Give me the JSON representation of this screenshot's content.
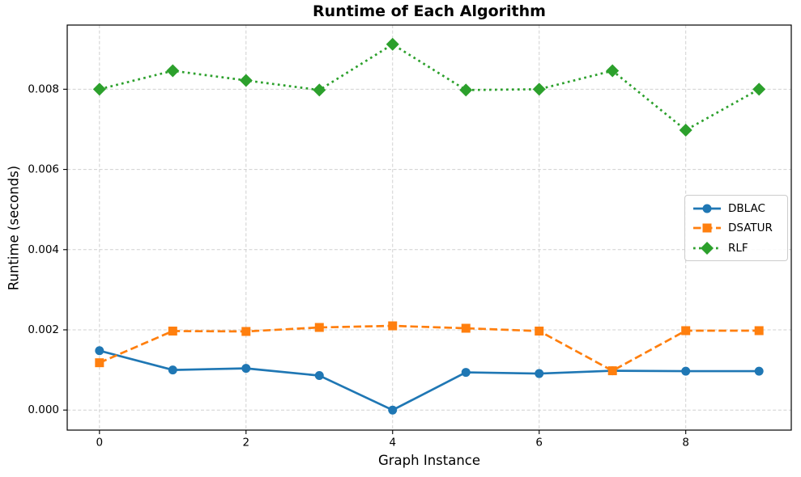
{
  "chart_data": {
    "type": "line",
    "title": "Runtime of Each Algorithm",
    "xlabel": "Graph Instance",
    "ylabel": "Runtime (seconds)",
    "x": [
      0,
      1,
      2,
      3,
      4,
      5,
      6,
      7,
      8,
      9
    ],
    "series": [
      {
        "name": "DBLAC",
        "color": "#1f77b4",
        "marker": "circle",
        "linestyle": "solid",
        "values": [
          0.00148,
          0.001,
          0.00104,
          0.00086,
          0.0,
          0.00094,
          0.00091,
          0.00098,
          0.00097,
          0.00097
        ]
      },
      {
        "name": "DSATUR",
        "color": "#ff7f0e",
        "marker": "square",
        "linestyle": "dashed",
        "values": [
          0.00118,
          0.00197,
          0.00196,
          0.00206,
          0.0021,
          0.00204,
          0.00197,
          0.00098,
          0.00198,
          0.00198
        ]
      },
      {
        "name": "RLF",
        "color": "#2ca02c",
        "marker": "diamond",
        "linestyle": "dotted",
        "values": [
          0.008,
          0.00846,
          0.00822,
          0.00798,
          0.00912,
          0.00798,
          0.008,
          0.00846,
          0.00698,
          0.008
        ]
      }
    ],
    "xticks": [
      0,
      2,
      4,
      6,
      8
    ],
    "xtick_labels": [
      "0",
      "2",
      "4",
      "6",
      "8"
    ],
    "yticks": [
      0.0,
      0.002,
      0.004,
      0.006,
      0.008
    ],
    "ytick_labels": [
      "0.000",
      "0.002",
      "0.004",
      "0.006",
      "0.008"
    ],
    "xlim": [
      -0.44,
      9.44
    ],
    "ylim": [
      -0.0005,
      0.0096
    ],
    "grid": true,
    "legend_position": "center right",
    "grid_color": "#c8c8c8",
    "spine_color": "#000000"
  }
}
